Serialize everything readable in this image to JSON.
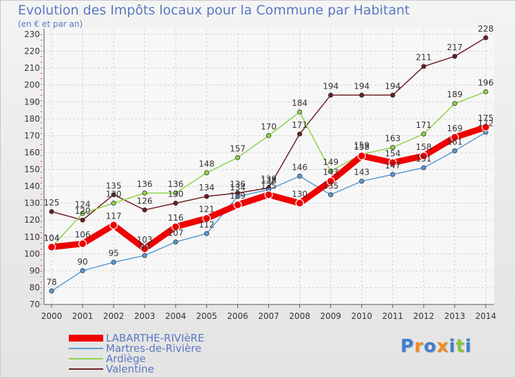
{
  "title": "Evolution des Impôts locaux pour la Commune par Habitant",
  "subtitle": "(en € et par an)",
  "logo": {
    "text": "Proxiti",
    "colors": [
      "#3f7fd0",
      "#f08a24",
      "#3f7fd0",
      "#f08a24",
      "#3f7fd0",
      "#8cc63f",
      "#3f7fd0"
    ]
  },
  "chart_data": {
    "type": "line",
    "x": [
      "2000",
      "2001",
      "2002",
      "2003",
      "2004",
      "2005",
      "2006",
      "2007",
      "2008",
      "2009",
      "2010",
      "2011",
      "2012",
      "2013",
      "2014"
    ],
    "ylim": [
      70,
      230
    ],
    "yticks": [
      70,
      80,
      90,
      100,
      110,
      120,
      130,
      140,
      150,
      160,
      170,
      180,
      190,
      200,
      210,
      220,
      230
    ],
    "grid": true,
    "legend_position": "bottom-left",
    "series": [
      {
        "name": "Valentine",
        "color": "#6b1e22",
        "values": [
          125,
          120,
          135,
          126,
          130,
          134,
          136,
          139,
          171,
          194,
          194,
          194,
          211,
          217,
          228
        ]
      },
      {
        "name": "Ardiège",
        "color": "#8fd34a",
        "values": [
          104,
          124,
          130,
          136,
          136,
          148,
          157,
          170,
          184,
          149,
          159,
          163,
          171,
          189,
          196
        ]
      },
      {
        "name": "Martres-de-Rivière",
        "color": "#5b9bd2",
        "values": [
          78,
          90,
          95,
          99,
          107,
          112,
          134,
          138,
          146,
          135,
          143,
          147,
          151,
          161,
          172
        ]
      },
      {
        "name": "LABARTHE-RIVIèRE",
        "color": "#ee0000",
        "values": [
          104,
          106,
          117,
          103,
          116,
          121,
          129,
          135,
          130,
          143,
          158,
          154,
          158,
          169,
          175
        ]
      }
    ],
    "legend_order": [
      "LABARTHE-RIVIèRE",
      "Martres-de-Rivière",
      "Ardiège",
      "Valentine"
    ]
  }
}
